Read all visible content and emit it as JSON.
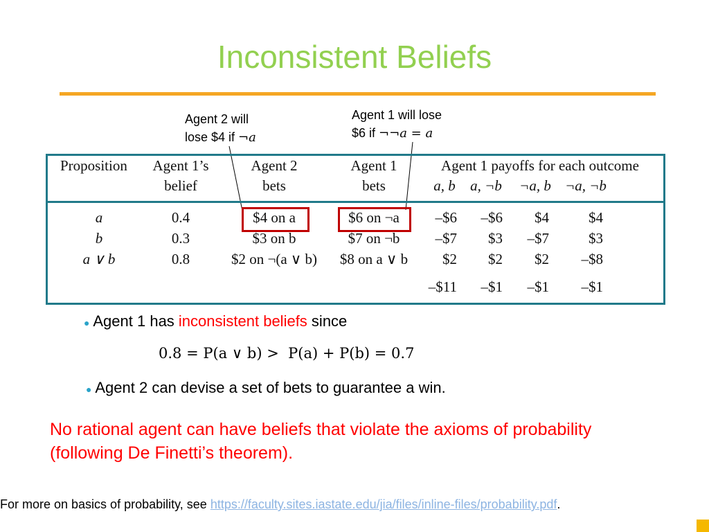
{
  "title": "Inconsistent Beliefs",
  "callouts": {
    "agent2_line1": "Agent 2 will",
    "agent2_line2_prefix": "lose $4 if ",
    "agent2_line2_math": "¬a",
    "agent1_line1": "Agent 1 will lose",
    "agent1_line2_prefix": "$6 if ",
    "agent1_line2_math": "¬¬a = a"
  },
  "table": {
    "headers": {
      "proposition": "Proposition",
      "agent1_belief_1": "Agent 1’s",
      "agent1_belief_2": "belief",
      "agent2_bets_1": "Agent 2",
      "agent2_bets_2": "bets",
      "agent1_bets_1": "Agent 1",
      "agent1_bets_2": "bets",
      "payoffs": "Agent 1 payoffs for each outcome",
      "outcomes": [
        "a, b",
        "a, ¬b",
        "¬a, b",
        "¬a, ¬b"
      ]
    },
    "rows": [
      {
        "prop": "a",
        "belief": "0.4",
        "agent2_bet": "$4 on a",
        "agent1_bet": "$6 on ¬a",
        "payoffs": [
          "–$6",
          "–$6",
          "$4",
          "$4"
        ]
      },
      {
        "prop": "b",
        "belief": "0.3",
        "agent2_bet": "$3 on b",
        "agent1_bet": "$7 on ¬b",
        "payoffs": [
          "–$7",
          "$3",
          "–$7",
          "$3"
        ]
      },
      {
        "prop": "a ∨ b",
        "belief": "0.8",
        "agent2_bet": "$2 on ¬(a ∨ b)",
        "agent1_bet": "$8 on a ∨ b",
        "payoffs": [
          "$2",
          "$2",
          "$2",
          "–$8"
        ]
      }
    ],
    "totals": [
      "–$11",
      "–$1",
      "–$1",
      "–$1"
    ]
  },
  "bullets": {
    "b1_prefix": "Agent 1 has ",
    "b1_highlight": "inconsistent beliefs",
    "b1_suffix": " since",
    "equation": "0.8 = P(a ∨ b) >  P(a) + P(b) = 0.7",
    "b2": "Agent 2 can devise a set of bets to guarantee a win."
  },
  "conclusion_line1": "No rational agent can have beliefs that violate the axioms of probability",
  "conclusion_line2": "(following De Finetti’s theorem).",
  "footer": {
    "prefix": "For more on basics of probability, see ",
    "link": "https://faculty.sites.iastate.edu/jia/files/inline-files/probability.pdf",
    "suffix": "."
  },
  "colors": {
    "title": "#92d050",
    "rule": "#f5a623",
    "table_border": "#217a8a",
    "highlight_box": "#c00000",
    "emphasis": "#ff0000",
    "link": "#8db4e2"
  }
}
